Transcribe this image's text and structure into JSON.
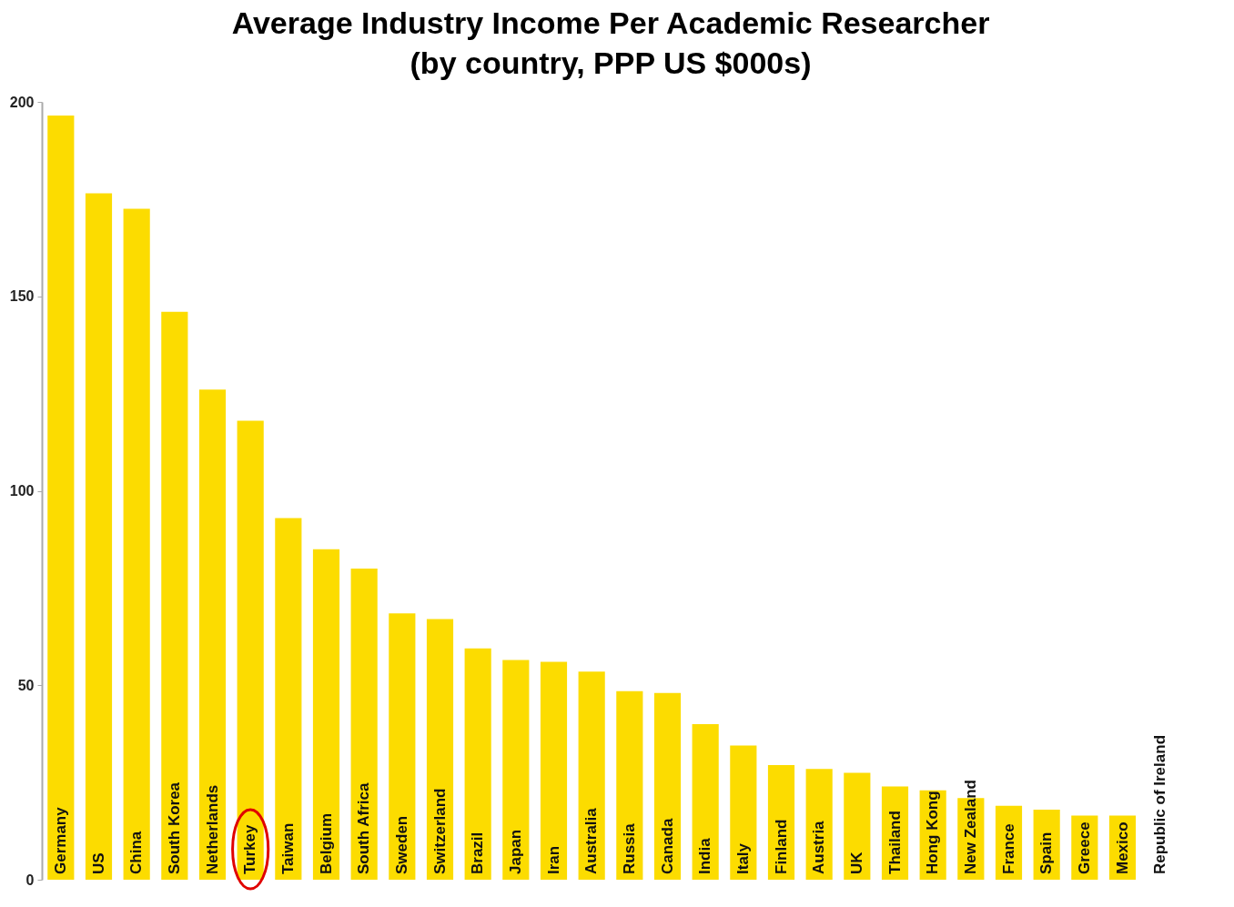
{
  "chart_data": {
    "type": "bar",
    "title": [
      "Average Industry Income Per Academic Researcher",
      "(by country, PPP US $000s)"
    ],
    "categories": [
      "Germany",
      "US",
      "China",
      "South Korea",
      "Netherlands",
      "Turkey",
      "Taiwan",
      "Belgium",
      "South Africa",
      "Sweden",
      "Switzerland",
      "Brazil",
      "Japan",
      "Iran",
      "Australia",
      "Russia",
      "Canada",
      "India",
      "Italy",
      "Finland",
      "Austria",
      "UK",
      "Thailand",
      "Hong Kong",
      "New Zealand",
      "France",
      "Spain",
      "Greece",
      "Mexico",
      "Republic of Ireland"
    ],
    "values": [
      196.5,
      176.5,
      172.5,
      146,
      126,
      118,
      93,
      85,
      80,
      68.5,
      67,
      59.5,
      56.5,
      56,
      53.5,
      48.5,
      48,
      40,
      34.5,
      29.5,
      28.5,
      27.5,
      24,
      23,
      21,
      19,
      18,
      16.5,
      16.5,
      null
    ],
    "color": "#fcdc00",
    "ylim": [
      0,
      200
    ],
    "yticks": [
      0,
      50,
      100,
      150,
      200
    ],
    "grid": false
  }
}
